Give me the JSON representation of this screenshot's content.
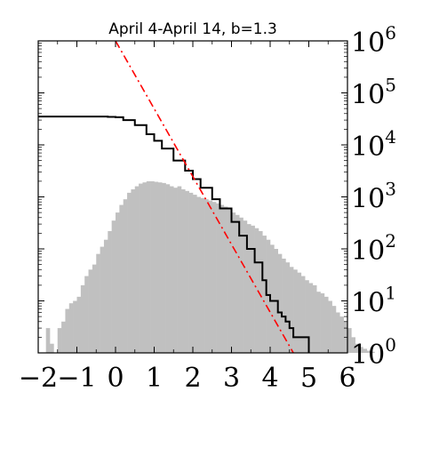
{
  "chart_data": {
    "type": "bar",
    "title": "April 4-April 14, b=1.3",
    "xlabel": "",
    "ylabel": "",
    "xlim": [
      -2,
      6
    ],
    "ylim": [
      1,
      1000000
    ],
    "yscale": "log",
    "x_ticks": [
      -2,
      -1,
      0,
      1,
      2,
      3,
      4,
      5,
      6
    ],
    "x_tick_labels": [
      "−2",
      "−1",
      "0",
      "1",
      "2",
      "3",
      "4",
      "5",
      "6"
    ],
    "y_ticks": [
      1,
      10,
      100,
      1000,
      10000,
      100000,
      1000000
    ],
    "y_tick_labels": [
      {
        "base": "10",
        "exp": "0"
      },
      {
        "base": "10",
        "exp": "1"
      },
      {
        "base": "10",
        "exp": "2"
      },
      {
        "base": "10",
        "exp": "3"
      },
      {
        "base": "10",
        "exp": "4"
      },
      {
        "base": "10",
        "exp": "5"
      },
      {
        "base": "10",
        "exp": "6"
      }
    ],
    "y_axis_side": "right",
    "grid": false,
    "legend": "none",
    "histogram": {
      "color": "#c0c0c0",
      "bin_width": 0.1,
      "bin_start": -1.8,
      "values": [
        3,
        1.5,
        1,
        3,
        4,
        7,
        9,
        10,
        12,
        20,
        30,
        40,
        50,
        80,
        110,
        150,
        220,
        350,
        500,
        700,
        900,
        1200,
        1400,
        1600,
        1800,
        1900,
        2000,
        2000,
        1950,
        1900,
        1850,
        1750,
        1600,
        1500,
        1600,
        1400,
        1300,
        1200,
        1100,
        1000,
        950,
        900,
        850,
        800,
        750,
        700,
        650,
        600,
        500,
        450,
        400,
        350,
        300,
        280,
        250,
        220,
        180,
        150,
        120,
        100,
        80,
        65,
        55,
        45,
        40,
        35,
        30,
        25,
        22,
        20,
        15,
        14,
        12,
        10,
        8,
        6,
        5,
        4,
        3,
        2,
        1.5,
        1.3,
        1.2,
        1.1,
        1.05,
        1,
        1,
        1,
        1,
        1,
        1,
        1,
        1,
        1,
        1,
        1,
        1
      ]
    },
    "series": [
      {
        "type": "step",
        "color": "#000000",
        "x": [
          -2,
          -1.5,
          -1,
          -0.5,
          -0.2,
          0,
          0.2,
          0.5,
          0.8,
          1.0,
          1.2,
          1.5,
          1.8,
          2.0,
          2.2,
          2.5,
          2.7,
          3.0,
          3.2,
          3.4,
          3.6,
          3.8,
          3.9,
          4.0,
          4.1,
          4.2,
          4.3,
          4.4,
          4.5,
          4.6,
          4.7,
          4.8,
          4.9,
          5.0
        ],
        "y": [
          35000,
          35000,
          35000,
          35000,
          34500,
          34000,
          30000,
          24000,
          16000,
          12000,
          8500,
          5000,
          3200,
          2200,
          1500,
          900,
          600,
          330,
          180,
          100,
          55,
          25,
          13,
          10,
          10,
          6,
          5,
          4,
          3,
          2,
          2,
          2,
          2,
          1
        ]
      },
      {
        "type": "line",
        "style": "dash-dot",
        "color": "#ff0000",
        "x": [
          0,
          4.6
        ],
        "y": [
          1000000,
          1
        ]
      }
    ]
  }
}
